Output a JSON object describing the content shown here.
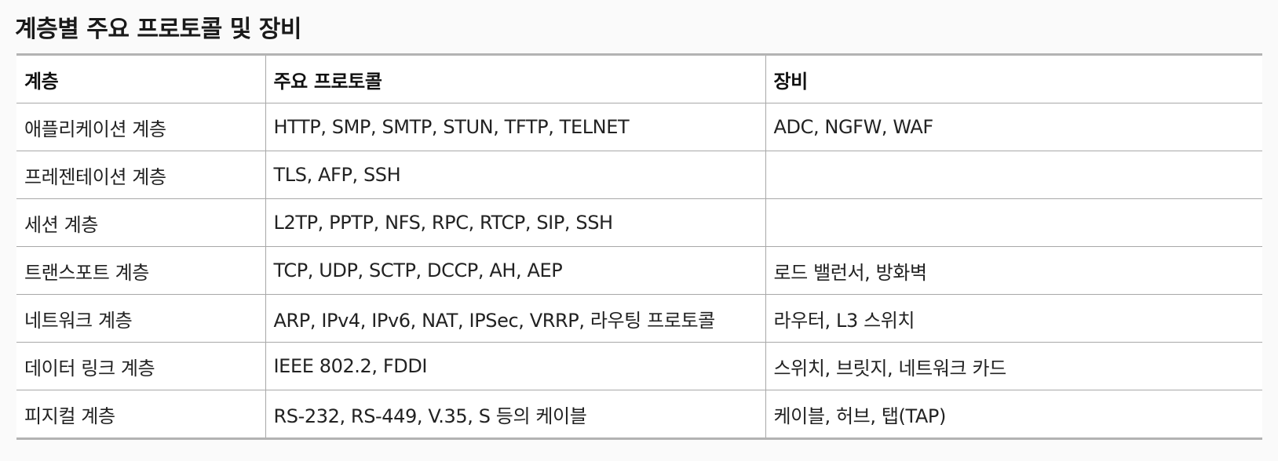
{
  "title": "계층별 주요 프로토콜 및 장비",
  "table": {
    "headers": [
      "계층",
      "주요 프로토콜",
      "장비"
    ],
    "rows": [
      [
        "애플리케이션 계층",
        "HTTP, SMP, SMTP, STUN, TFTP, TELNET",
        "ADC, NGFW, WAF"
      ],
      [
        "프레젠테이션 계층",
        "TLS, AFP, SSH",
        ""
      ],
      [
        "세션 계층",
        "L2TP, PPTP, NFS, RPC, RTCP, SIP, SSH",
        ""
      ],
      [
        "트랜스포트 계층",
        "TCP, UDP, SCTP, DCCP, AH, AEP",
        "로드 밸런서, 방화벽"
      ],
      [
        "네트워크 계층",
        "ARP, IPv4, IPv6, NAT, IPSec, VRRP, 라우팅 프로토콜",
        "라우터, L3 스위치"
      ],
      [
        "데이터 링크 계층",
        "IEEE 802.2, FDDI",
        "스위치, 브릿지, 네트워크 카드"
      ],
      [
        "피지컬 계층",
        "RS-232, RS-449, V.35, S 등의 케이블",
        "케이블, 허브, 탭(TAP)"
      ]
    ]
  }
}
